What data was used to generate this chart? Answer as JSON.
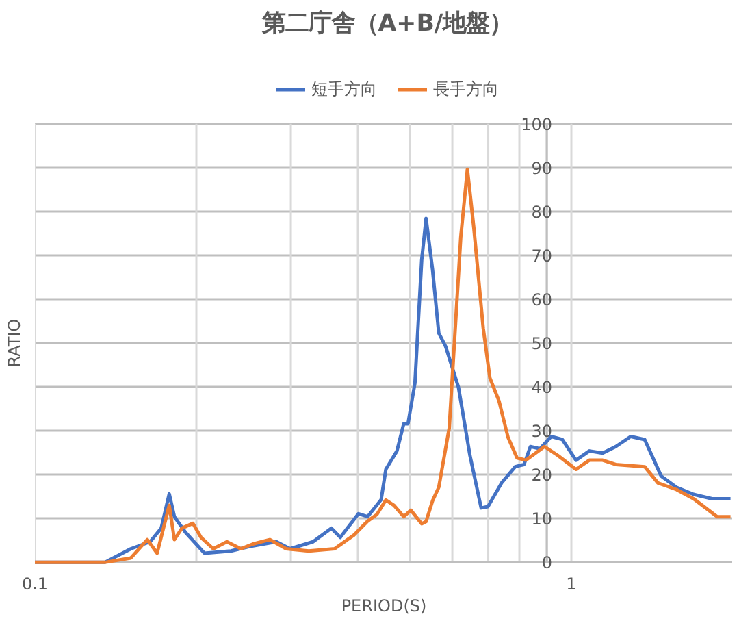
{
  "chart_data": {
    "type": "line",
    "title": "第二庁舎（A+B/地盤）",
    "xlabel": "PERIOD(S)",
    "ylabel": "RATIO",
    "log": "x",
    "grid": true,
    "legend": "top",
    "marker": "none",
    "line_style": "solid",
    "xlim": [
      0.1,
      2
    ],
    "ylim": [
      0,
      100
    ],
    "xticks": [
      0.1,
      {
        "value": 0.2,
        "label": null
      },
      {
        "value": 0.3,
        "label": null
      },
      {
        "value": 0.4,
        "label": null
      },
      {
        "value": 0.5,
        "label": null
      },
      {
        "value": 0.6,
        "label": null
      },
      {
        "value": 0.7,
        "label": null
      },
      {
        "value": 0.8,
        "label": null
      },
      {
        "value": 0.9,
        "label": null
      },
      1
    ],
    "yticks": [
      0,
      10,
      20,
      30,
      40,
      50,
      60,
      70,
      80,
      90,
      100
    ],
    "series": [
      {
        "name": "短手方向",
        "color": "#4472c4",
        "x": [
          0.1,
          0.135,
          0.151,
          0.164,
          0.172,
          0.178,
          0.182,
          0.191,
          0.207,
          0.232,
          0.251,
          0.282,
          0.299,
          0.33,
          0.357,
          0.371,
          0.401,
          0.417,
          0.442,
          0.451,
          0.473,
          0.487,
          0.496,
          0.511,
          0.526,
          0.536,
          0.551,
          0.566,
          0.583,
          0.616,
          0.647,
          0.679,
          0.699,
          0.741,
          0.786,
          0.816,
          0.839,
          0.874,
          0.917,
          0.962,
          1.02,
          1.08,
          1.144,
          1.21,
          1.29,
          1.37,
          1.47,
          1.57,
          1.69,
          1.83,
          1.98
        ],
        "values": [
          0,
          0,
          3.1,
          4.7,
          7.8,
          15.6,
          10.4,
          6.8,
          2.1,
          2.6,
          3.6,
          4.7,
          3.1,
          4.7,
          7.8,
          5.7,
          11.1,
          10.4,
          14.3,
          21.2,
          25.4,
          31.6,
          31.6,
          40.9,
          68.9,
          78.4,
          66.8,
          52.3,
          49.2,
          39.9,
          24.4,
          12.4,
          12.7,
          18.1,
          21.8,
          22.3,
          26.4,
          25.9,
          28.7,
          28,
          23.3,
          25.4,
          24.9,
          26.4,
          28.7,
          28,
          19.7,
          17.1,
          15.5,
          14.5,
          14.5
        ]
      },
      {
        "name": "長手方向",
        "color": "#ed7d31",
        "x": [
          0.1,
          0.135,
          0.151,
          0.162,
          0.169,
          0.178,
          0.182,
          0.188,
          0.197,
          0.204,
          0.215,
          0.228,
          0.242,
          0.255,
          0.274,
          0.294,
          0.324,
          0.362,
          0.393,
          0.417,
          0.434,
          0.451,
          0.467,
          0.487,
          0.502,
          0.526,
          0.536,
          0.551,
          0.566,
          0.592,
          0.622,
          0.64,
          0.658,
          0.685,
          0.705,
          0.733,
          0.762,
          0.792,
          0.823,
          0.891,
          0.943,
          1.02,
          1.08,
          1.144,
          1.21,
          1.37,
          1.45,
          1.57,
          1.69,
          1.87,
          1.98
        ],
        "values": [
          0,
          0,
          1,
          5.2,
          2.1,
          13,
          5.2,
          7.8,
          8.9,
          5.7,
          3.1,
          4.7,
          3.1,
          4.2,
          5.2,
          3.1,
          2.6,
          3.1,
          6.2,
          9.4,
          10.9,
          14.2,
          13,
          10.4,
          11.9,
          8.8,
          9.3,
          14,
          17.1,
          30.6,
          74.1,
          89.6,
          76.2,
          53.4,
          42,
          36.8,
          28.5,
          23.8,
          23.3,
          26.4,
          24.4,
          21.2,
          23.3,
          23.3,
          22.3,
          21.8,
          18.1,
          16.6,
          14.5,
          10.4,
          10.4
        ]
      }
    ]
  }
}
